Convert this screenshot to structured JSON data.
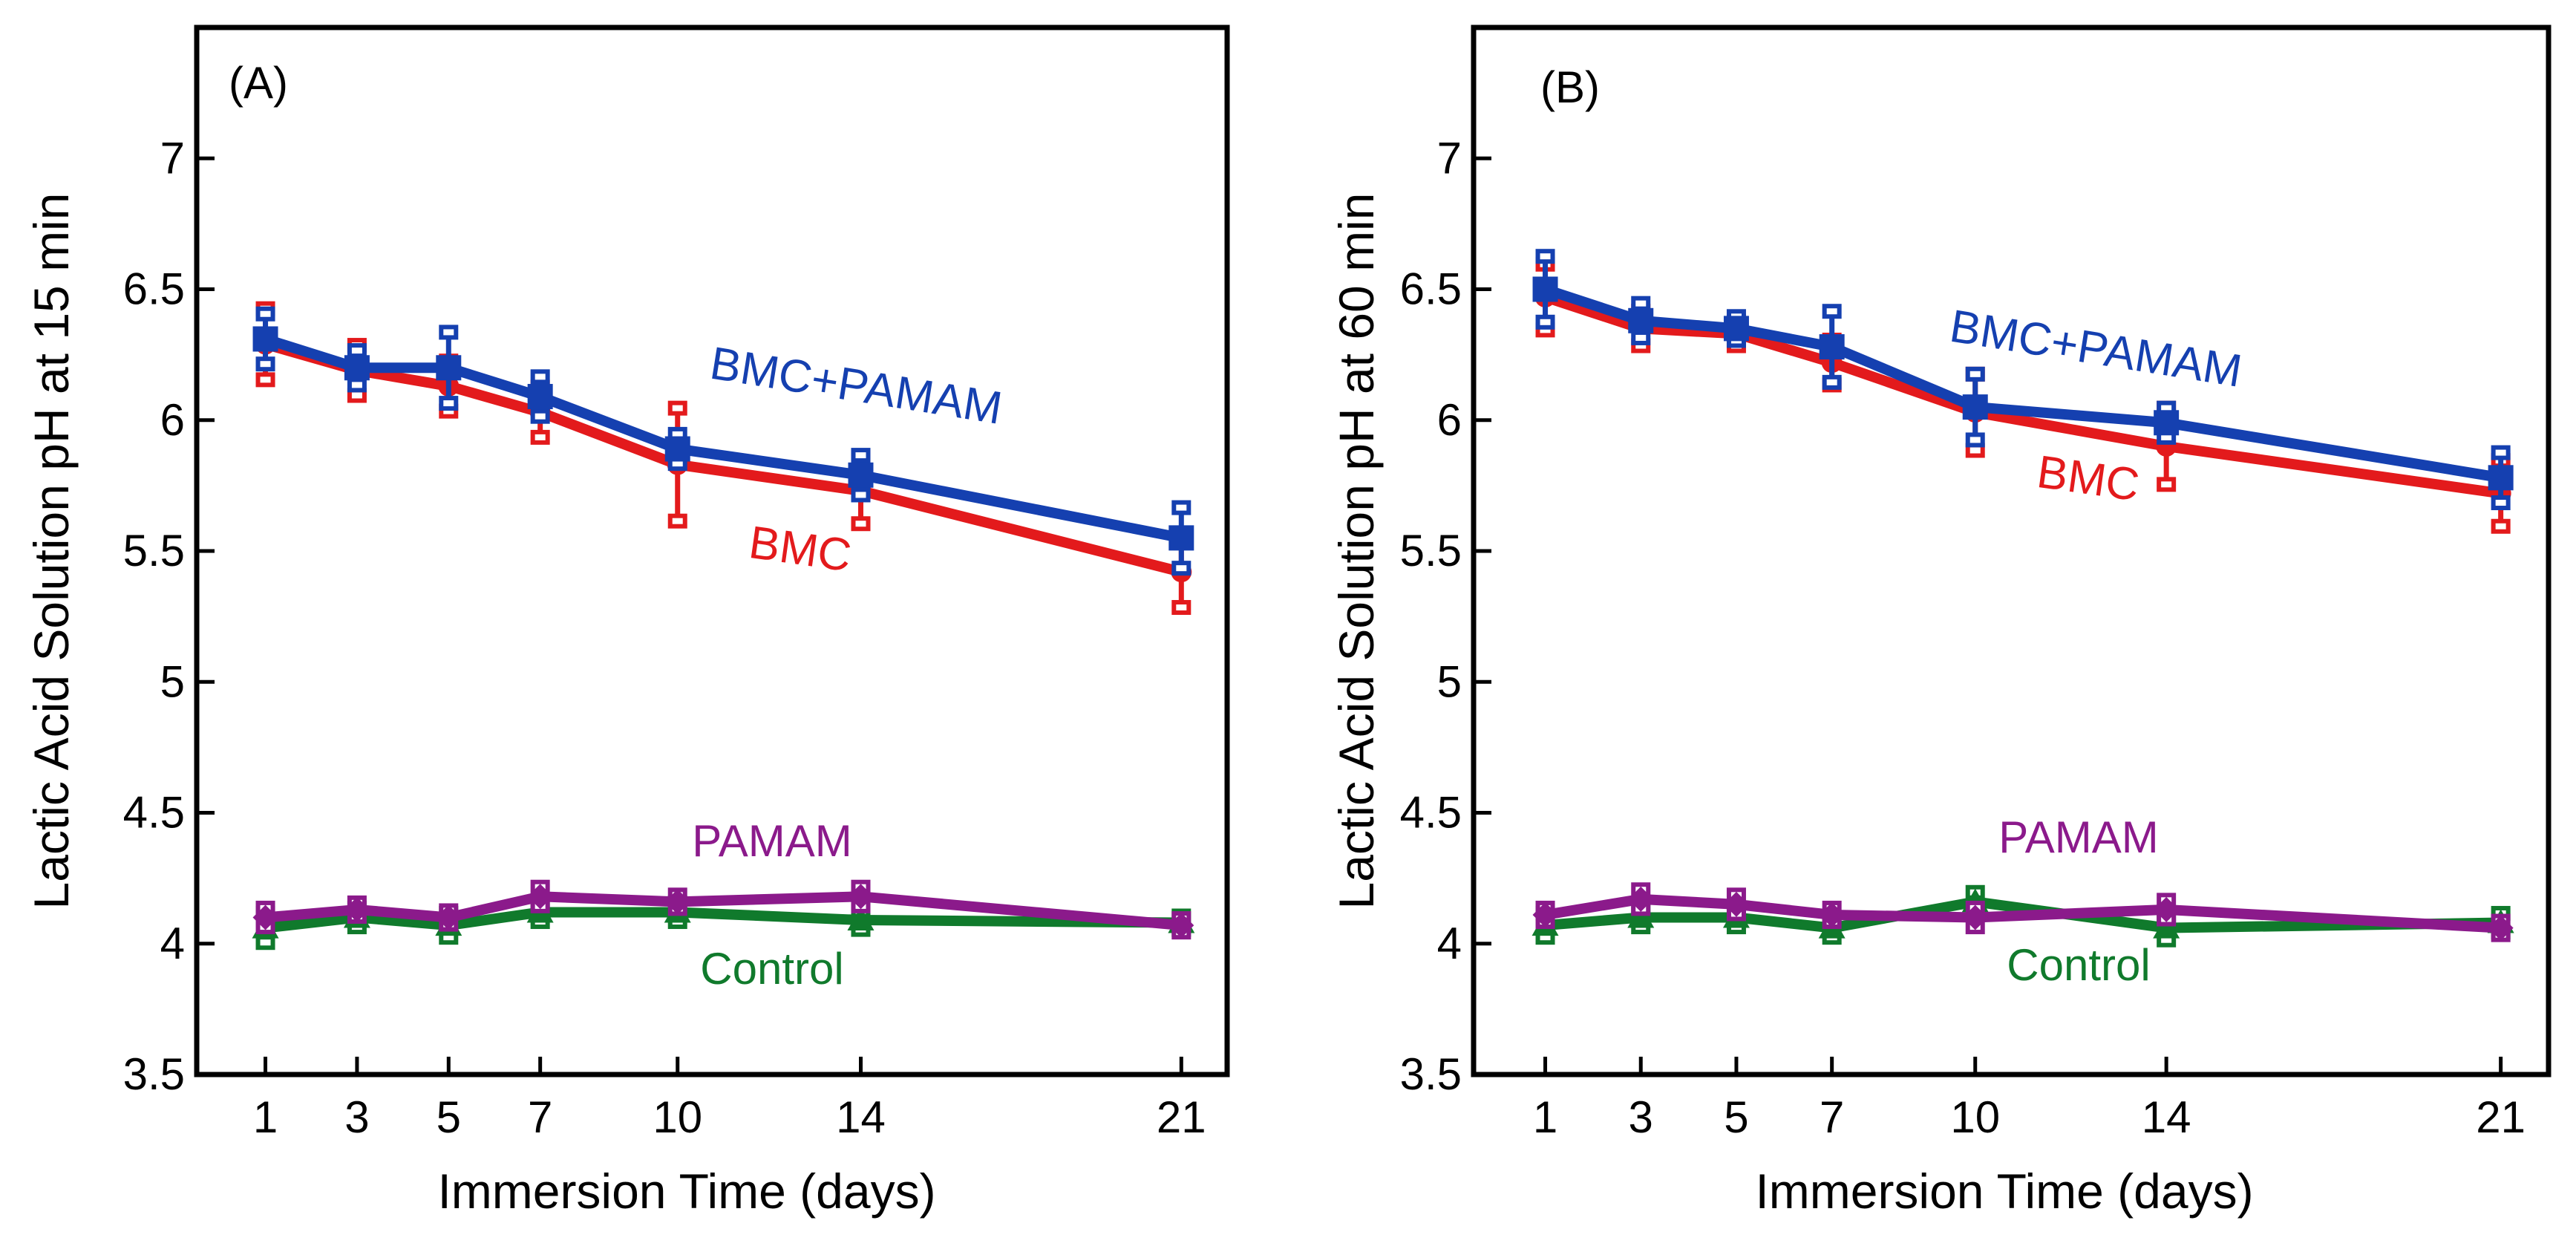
{
  "chart_data": [
    {
      "type": "line",
      "panel_label": "(A)",
      "title": "",
      "xlabel": "Immersion Time (days)",
      "ylabel": "Lactic Acid Solution pH at 15 min",
      "x": [
        1,
        3,
        5,
        7,
        10,
        14,
        21
      ],
      "x_ticks": [
        "1",
        "3",
        "5",
        "7",
        "10",
        "14",
        "21"
      ],
      "y_ticks": [
        "3.5",
        "4",
        "4.5",
        "5",
        "5.5",
        "6",
        "6.5",
        "7"
      ],
      "xlim": [
        -0.5,
        22
      ],
      "ylim": [
        3.5,
        7.5
      ],
      "grid": false,
      "series": [
        {
          "name": "BMC",
          "label": "BMC",
          "color": "#e31a1c",
          "marker": "circle",
          "values": [
            6.29,
            6.19,
            6.13,
            6.03,
            5.83,
            5.73,
            5.42
          ],
          "errors": [
            0.13,
            0.09,
            0.09,
            0.09,
            0.21,
            0.12,
            0.13
          ]
        },
        {
          "name": "BMC+PAMAM",
          "label": "BMC+PAMAM",
          "color": "#1540b0",
          "marker": "square",
          "values": [
            6.31,
            6.2,
            6.2,
            6.09,
            5.89,
            5.79,
            5.55
          ],
          "errors": [
            0.09,
            0.06,
            0.13,
            0.07,
            0.05,
            0.07,
            0.11
          ]
        },
        {
          "name": "PAMAM",
          "label": "PAMAM",
          "color": "#8b1a8b",
          "marker": "diamond",
          "values": [
            4.1,
            4.13,
            4.1,
            4.18,
            4.16,
            4.18,
            4.07
          ],
          "errors": [
            0.03,
            0.02,
            0.02,
            0.03,
            0.02,
            0.03,
            0.02
          ]
        },
        {
          "name": "Control",
          "label": "Control",
          "color": "#107a2c",
          "marker": "triangle",
          "values": [
            4.06,
            4.1,
            4.07,
            4.12,
            4.12,
            4.09,
            4.08
          ],
          "errors": [
            0.05,
            0.03,
            0.04,
            0.03,
            0.03,
            0.03,
            0.02
          ]
        }
      ]
    },
    {
      "type": "line",
      "panel_label": "(B)",
      "title": "",
      "xlabel": "Immersion Time (days)",
      "ylabel": "Lactic Acid Solution pH at 60 min",
      "x": [
        1,
        3,
        5,
        7,
        10,
        14,
        21
      ],
      "x_ticks": [
        "1",
        "3",
        "5",
        "7",
        "10",
        "14",
        "21"
      ],
      "y_ticks": [
        "3.5",
        "4",
        "4.5",
        "5",
        "5.5",
        "6",
        "6.5",
        "7"
      ],
      "xlim": [
        -0.5,
        22
      ],
      "ylim": [
        3.5,
        7.5
      ],
      "grid": false,
      "series": [
        {
          "name": "BMC",
          "label": "BMC",
          "color": "#e31a1c",
          "marker": "circle",
          "values": [
            6.47,
            6.35,
            6.33,
            6.22,
            6.03,
            5.9,
            5.72
          ],
          "errors": [
            0.12,
            0.06,
            0.04,
            0.08,
            0.14,
            0.14,
            0.12
          ]
        },
        {
          "name": "BMC+PAMAM",
          "label": "BMC+PAMAM",
          "color": "#1540b0",
          "marker": "square",
          "values": [
            6.5,
            6.38,
            6.35,
            6.28,
            6.05,
            5.99,
            5.78
          ],
          "errors": [
            0.12,
            0.06,
            0.04,
            0.13,
            0.12,
            0.05,
            0.09
          ]
        },
        {
          "name": "PAMAM",
          "label": "PAMAM",
          "color": "#8b1a8b",
          "marker": "diamond",
          "values": [
            4.11,
            4.17,
            4.15,
            4.11,
            4.1,
            4.13,
            4.06
          ],
          "errors": [
            0.02,
            0.03,
            0.03,
            0.02,
            0.03,
            0.03,
            0.02
          ]
        },
        {
          "name": "Control",
          "label": "Control",
          "color": "#107a2c",
          "marker": "triangle",
          "values": [
            4.07,
            4.1,
            4.1,
            4.06,
            4.16,
            4.06,
            4.08
          ],
          "errors": [
            0.04,
            0.03,
            0.03,
            0.03,
            0.03,
            0.04,
            0.03
          ]
        }
      ]
    }
  ]
}
